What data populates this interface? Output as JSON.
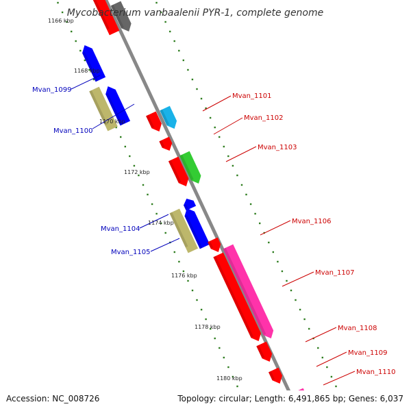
{
  "title": "Mycobacterium vanbaalenii PYR-1, complete genome",
  "accession": "Accession: NC_008726",
  "topology": "Topology: circular; Length: 6,491,865 bp; Genes: 6,037",
  "colors": {
    "backbone": "#888888",
    "tick": "#2e7d1f",
    "forward_label": "#cc0000",
    "reverse_label": "#0000bb",
    "red": "#ff0000",
    "blue": "#0000ff",
    "khaki": "#bdb76b",
    "cyan": "#1ab2e8",
    "green": "#33cc33",
    "pink": "#ff33aa",
    "gray": "#666666"
  },
  "kbp_labels": [
    "1166 kbp",
    "1168 kbp",
    "1170 kbp",
    "1172 kbp",
    "1174 kbp",
    "1176 kbp",
    "1178 kbp",
    "1180 kbp"
  ],
  "features": [
    {
      "name": "Mvan_1099",
      "strand": "reverse",
      "color": "blue"
    },
    {
      "name": "Mvan_1100",
      "strand": "reverse",
      "color": "blue"
    },
    {
      "name": "Mvan_1101",
      "strand": "forward",
      "color": "cyan"
    },
    {
      "name": "Mvan_1102",
      "strand": "forward",
      "color": "red"
    },
    {
      "name": "Mvan_1103",
      "strand": "forward",
      "color": "green"
    },
    {
      "name": "Mvan_1104",
      "strand": "reverse",
      "color": "blue"
    },
    {
      "name": "Mvan_1105",
      "strand": "reverse",
      "color": "blue"
    },
    {
      "name": "Mvan_1106",
      "strand": "forward",
      "color": "red"
    },
    {
      "name": "Mvan_1107",
      "strand": "forward",
      "color": "pink"
    },
    {
      "name": "Mvan_1108",
      "strand": "forward",
      "color": "red"
    },
    {
      "name": "Mvan_1109",
      "strand": "forward",
      "color": "red"
    },
    {
      "name": "Mvan_1110",
      "strand": "forward",
      "color": "red"
    }
  ]
}
